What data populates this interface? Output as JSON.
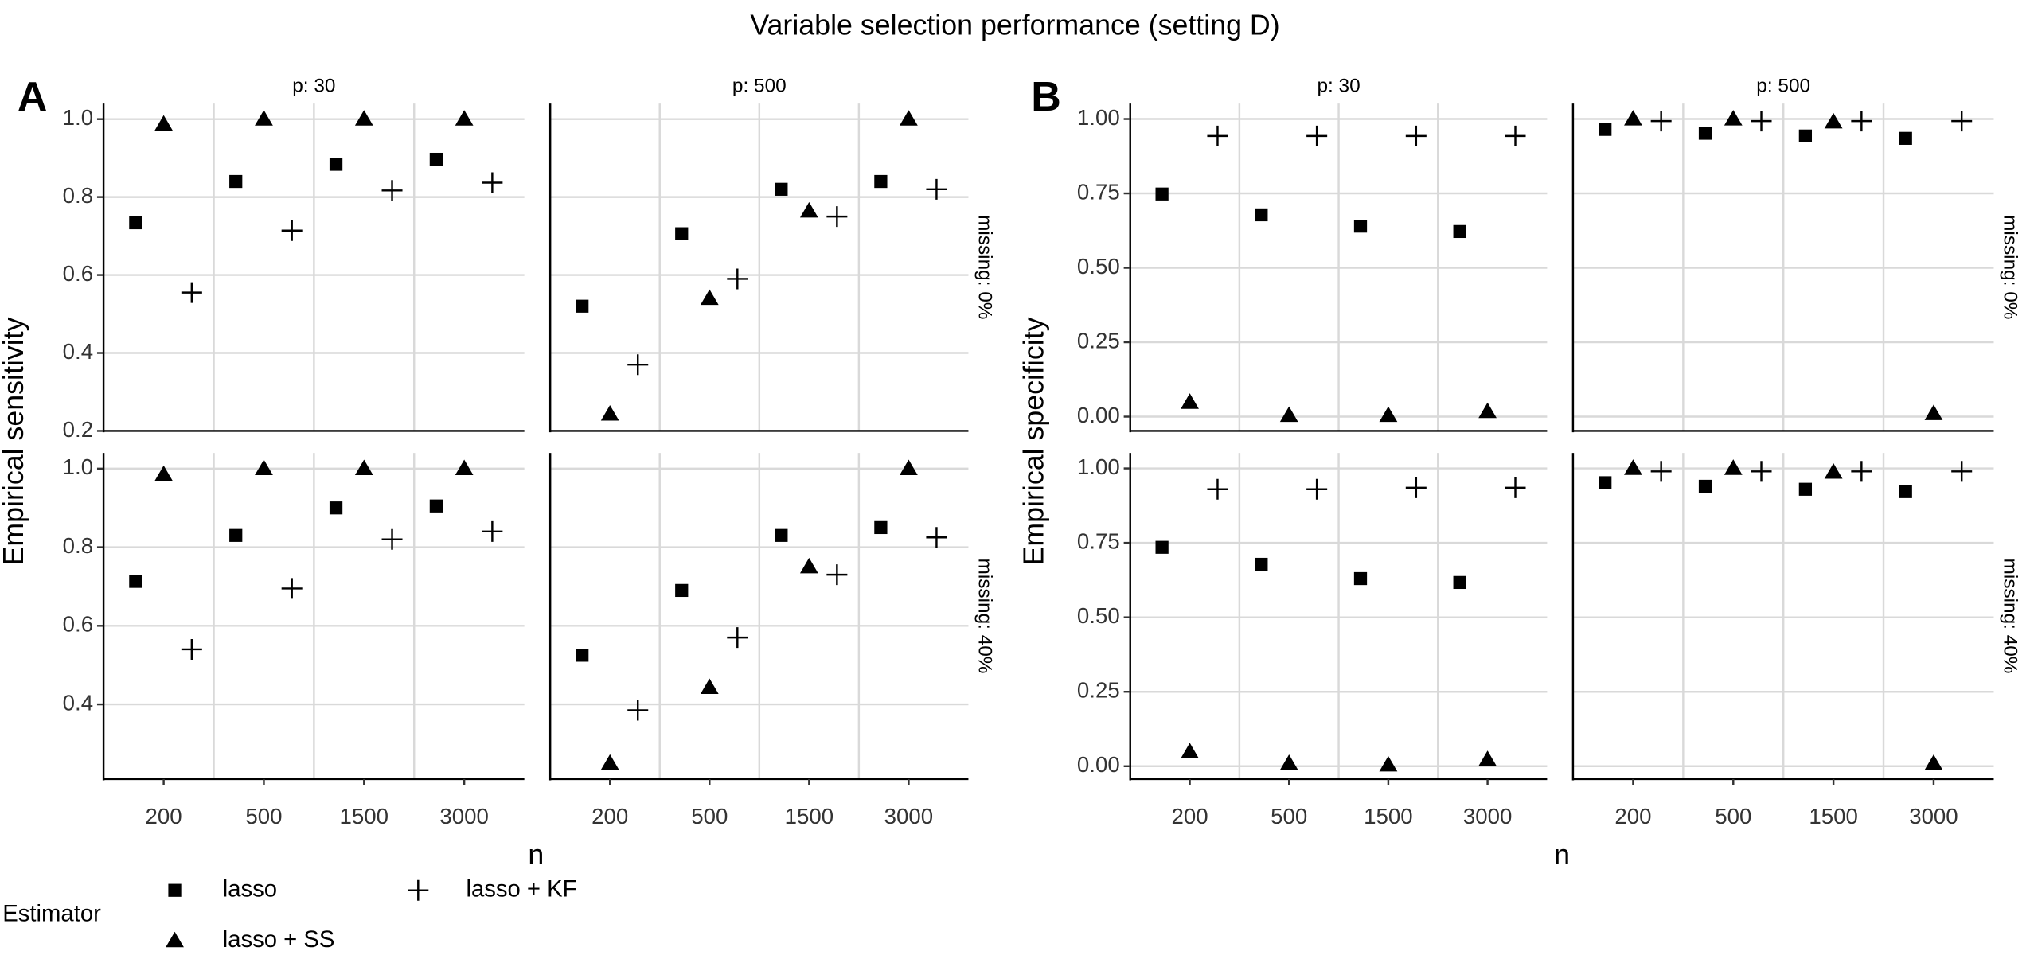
{
  "title": "Variable selection performance (setting D)",
  "legend_title": "Estimator",
  "chart_data": [
    {
      "type": "scatter",
      "panel_label": "A",
      "ylabel": "Empirical sensitivity",
      "xlabel": "n",
      "columns": [
        "p: 30",
        "p: 500"
      ],
      "rows": [
        "missing: 0%",
        "missing: 40%"
      ],
      "categories": [
        "200",
        "500",
        "1500",
        "3000"
      ],
      "row_axes": [
        {
          "ylim": [
            0.2,
            1.04
          ],
          "yticks": [
            0.2,
            0.4,
            0.6,
            0.8,
            {
              "value": 1,
              "label": "1.0"
            }
          ]
        },
        {
          "ylim": [
            0.21,
            1.04
          ],
          "yticks": [
            0.4,
            0.6,
            0.8,
            {
              "value": 1,
              "label": "1.0"
            }
          ]
        }
      ],
      "grid": true,
      "series": [
        {
          "name": "lasso",
          "marker": "square",
          "color": "#000000",
          "values": [
            [
              0.734,
              0.84,
              0.884,
              0.897
            ],
            [
              0.52,
              0.706,
              0.82,
              0.84
            ],
            [
              0.713,
              0.83,
              0.9,
              0.905
            ],
            [
              0.525,
              0.69,
              0.83,
              0.85
            ]
          ]
        },
        {
          "name": "lasso + SS",
          "marker": "triangle",
          "color": "#000000",
          "values": [
            [
              0.987,
              1.0,
              1.0,
              1.0
            ],
            [
              0.243,
              0.54,
              0.764,
              1.0
            ],
            [
              0.985,
              1.0,
              1.0,
              1.0
            ],
            [
              0.25,
              0.443,
              0.75,
              1.0
            ]
          ]
        },
        {
          "name": "lasso + KF",
          "marker": "plus",
          "color": "#000000",
          "values": [
            [
              0.555,
              0.714,
              0.817,
              0.837
            ],
            [
              0.37,
              0.59,
              0.75,
              0.82
            ],
            [
              0.54,
              0.695,
              0.82,
              0.84
            ],
            [
              0.385,
              0.57,
              0.73,
              0.825
            ]
          ]
        }
      ]
    },
    {
      "type": "scatter",
      "panel_label": "B",
      "ylabel": "Empirical specificity",
      "xlabel": "n",
      "columns": [
        "p: 30",
        "p: 500"
      ],
      "rows": [
        "missing: 0%",
        "missing: 40%"
      ],
      "categories": [
        "200",
        "500",
        "1500",
        "3000"
      ],
      "row_axes": [
        {
          "ylim": [
            -0.048,
            1.052
          ],
          "yticks": [
            {
              "value": 0,
              "label": "0.00"
            },
            {
              "value": 0.25,
              "label": "0.25"
            },
            {
              "value": 0.5,
              "label": "0.50"
            },
            {
              "value": 0.75,
              "label": "0.75"
            },
            {
              "value": 1,
              "label": "1.00"
            }
          ]
        },
        {
          "ylim": [
            -0.043,
            1.052
          ],
          "yticks": [
            {
              "value": 0,
              "label": "0.00"
            },
            {
              "value": 0.25,
              "label": "0.25"
            },
            {
              "value": 0.5,
              "label": "0.50"
            },
            {
              "value": 0.75,
              "label": "0.75"
            },
            {
              "value": 1,
              "label": "1.00"
            }
          ]
        }
      ],
      "grid": true,
      "series": [
        {
          "name": "lasso",
          "marker": "square",
          "color": "#000000",
          "values": [
            [
              0.748,
              0.678,
              0.64,
              0.622
            ],
            [
              0.965,
              0.952,
              0.943,
              0.935
            ],
            [
              0.735,
              0.678,
              0.63,
              0.617
            ],
            [
              0.952,
              0.94,
              0.93,
              0.922
            ]
          ]
        },
        {
          "name": "lasso + SS",
          "marker": "triangle",
          "color": "#000000",
          "values": [
            [
              0.048,
              0.004,
              0.004,
              0.017
            ],
            [
              1.0,
              1.0,
              0.99,
              0.01
            ],
            [
              0.048,
              0.009,
              0.004,
              0.022
            ],
            [
              1.0,
              1.0,
              0.987,
              0.009
            ]
          ]
        },
        {
          "name": "lasso + KF",
          "marker": "plus",
          "color": "#000000",
          "values": [
            [
              0.943,
              0.943,
              0.943,
              0.943
            ],
            [
              0.993,
              0.993,
              0.993,
              0.993
            ],
            [
              0.93,
              0.93,
              0.935,
              0.935
            ],
            [
              0.99,
              0.99,
              0.99,
              0.99
            ]
          ]
        }
      ]
    }
  ]
}
